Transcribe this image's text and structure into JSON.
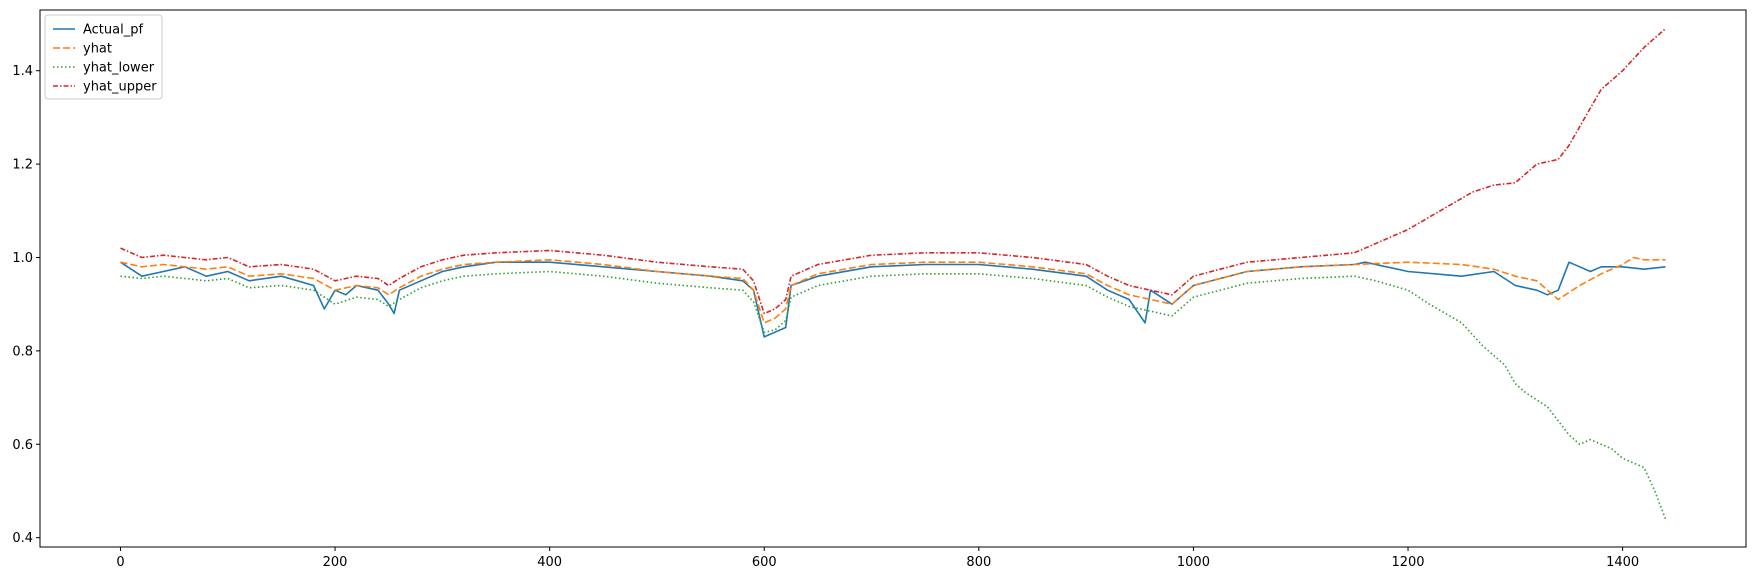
{
  "chart_data": {
    "type": "line",
    "title": "",
    "xlabel": "",
    "ylabel": "",
    "xlim": [
      -75,
      1515
    ],
    "ylim": [
      0.38,
      1.53
    ],
    "xticks": [
      0,
      200,
      400,
      600,
      800,
      1000,
      1200,
      1400
    ],
    "xtick_labels": [
      "0",
      "200",
      "400",
      "600",
      "800",
      "1000",
      "1200",
      "1400"
    ],
    "yticks": [
      0.4,
      0.6,
      0.8,
      1.0,
      1.2,
      1.4
    ],
    "ytick_labels": [
      "0.4",
      "0.6",
      "0.8",
      "1.0",
      "1.2",
      "1.4"
    ],
    "grid": false,
    "legend_position": "upper-left",
    "series": [
      {
        "name": "Actual_pf",
        "color": "#1f77b4",
        "dash": "solid",
        "x": [
          0,
          20,
          40,
          60,
          80,
          100,
          120,
          150,
          180,
          190,
          200,
          210,
          220,
          240,
          250,
          255,
          260,
          280,
          300,
          320,
          350,
          400,
          450,
          500,
          550,
          580,
          590,
          600,
          610,
          620,
          625,
          650,
          700,
          750,
          800,
          850,
          900,
          920,
          940,
          955,
          960,
          980,
          1000,
          1050,
          1100,
          1150,
          1160,
          1200,
          1250,
          1280,
          1300,
          1320,
          1330,
          1340,
          1350,
          1360,
          1370,
          1380,
          1400,
          1420,
          1440
        ],
        "y": [
          0.99,
          0.96,
          0.97,
          0.98,
          0.96,
          0.97,
          0.95,
          0.96,
          0.94,
          0.89,
          0.93,
          0.92,
          0.94,
          0.93,
          0.9,
          0.88,
          0.93,
          0.95,
          0.97,
          0.98,
          0.99,
          0.99,
          0.98,
          0.97,
          0.96,
          0.95,
          0.93,
          0.83,
          0.84,
          0.85,
          0.94,
          0.96,
          0.98,
          0.985,
          0.985,
          0.975,
          0.96,
          0.93,
          0.91,
          0.86,
          0.93,
          0.9,
          0.94,
          0.97,
          0.98,
          0.985,
          0.99,
          0.97,
          0.96,
          0.97,
          0.94,
          0.93,
          0.92,
          0.93,
          0.99,
          0.98,
          0.97,
          0.98,
          0.98,
          0.975,
          0.98
        ]
      },
      {
        "name": "yhat",
        "color": "#ff7f0e",
        "dash": "dashed",
        "x": [
          0,
          20,
          40,
          60,
          80,
          100,
          120,
          150,
          180,
          200,
          220,
          240,
          250,
          260,
          280,
          300,
          320,
          350,
          400,
          450,
          500,
          550,
          580,
          590,
          600,
          610,
          620,
          625,
          650,
          700,
          750,
          800,
          850,
          900,
          920,
          940,
          960,
          980,
          1000,
          1050,
          1100,
          1150,
          1200,
          1250,
          1280,
          1300,
          1320,
          1340,
          1360,
          1380,
          1400,
          1410,
          1420,
          1440
        ],
        "y": [
          0.99,
          0.98,
          0.985,
          0.98,
          0.975,
          0.98,
          0.96,
          0.965,
          0.955,
          0.93,
          0.94,
          0.935,
          0.92,
          0.935,
          0.96,
          0.975,
          0.985,
          0.99,
          0.995,
          0.985,
          0.97,
          0.96,
          0.955,
          0.93,
          0.86,
          0.87,
          0.89,
          0.94,
          0.965,
          0.985,
          0.99,
          0.99,
          0.98,
          0.965,
          0.94,
          0.92,
          0.91,
          0.9,
          0.94,
          0.97,
          0.98,
          0.985,
          0.99,
          0.985,
          0.975,
          0.96,
          0.95,
          0.91,
          0.94,
          0.965,
          0.985,
          1.0,
          0.995,
          0.995
        ]
      },
      {
        "name": "yhat_lower",
        "color": "#2ca02c",
        "dash": "dotted",
        "x": [
          0,
          20,
          40,
          60,
          80,
          100,
          120,
          150,
          180,
          200,
          220,
          240,
          250,
          260,
          280,
          300,
          320,
          350,
          400,
          450,
          500,
          550,
          580,
          590,
          600,
          610,
          620,
          625,
          650,
          700,
          750,
          800,
          850,
          900,
          920,
          940,
          960,
          980,
          1000,
          1050,
          1100,
          1150,
          1170,
          1200,
          1220,
          1250,
          1270,
          1290,
          1300,
          1310,
          1330,
          1350,
          1360,
          1370,
          1380,
          1390,
          1400,
          1410,
          1420,
          1430,
          1440
        ],
        "y": [
          0.96,
          0.955,
          0.96,
          0.955,
          0.95,
          0.955,
          0.935,
          0.94,
          0.93,
          0.9,
          0.915,
          0.91,
          0.895,
          0.91,
          0.935,
          0.95,
          0.96,
          0.965,
          0.97,
          0.96,
          0.945,
          0.935,
          0.93,
          0.905,
          0.84,
          0.845,
          0.865,
          0.915,
          0.94,
          0.96,
          0.965,
          0.965,
          0.955,
          0.94,
          0.915,
          0.895,
          0.885,
          0.875,
          0.915,
          0.945,
          0.955,
          0.96,
          0.95,
          0.93,
          0.9,
          0.86,
          0.81,
          0.77,
          0.73,
          0.71,
          0.68,
          0.62,
          0.6,
          0.61,
          0.6,
          0.59,
          0.57,
          0.56,
          0.55,
          0.5,
          0.44
        ]
      },
      {
        "name": "yhat_upper",
        "color": "#d62728",
        "dash": "dashdot",
        "x": [
          0,
          20,
          40,
          60,
          80,
          100,
          120,
          150,
          180,
          200,
          220,
          240,
          250,
          260,
          280,
          300,
          320,
          350,
          400,
          450,
          500,
          550,
          580,
          590,
          600,
          610,
          620,
          625,
          650,
          700,
          750,
          800,
          850,
          900,
          920,
          940,
          960,
          980,
          1000,
          1050,
          1100,
          1150,
          1170,
          1200,
          1230,
          1260,
          1280,
          1300,
          1320,
          1340,
          1350,
          1360,
          1370,
          1380,
          1400,
          1420,
          1440
        ],
        "y": [
          1.02,
          1.0,
          1.005,
          1.0,
          0.995,
          1.0,
          0.98,
          0.985,
          0.975,
          0.95,
          0.96,
          0.955,
          0.94,
          0.955,
          0.98,
          0.995,
          1.005,
          1.01,
          1.015,
          1.005,
          0.99,
          0.98,
          0.975,
          0.95,
          0.88,
          0.89,
          0.91,
          0.96,
          0.985,
          1.005,
          1.01,
          1.01,
          1.0,
          0.985,
          0.96,
          0.94,
          0.93,
          0.92,
          0.96,
          0.99,
          1.0,
          1.01,
          1.03,
          1.06,
          1.1,
          1.14,
          1.155,
          1.16,
          1.2,
          1.21,
          1.24,
          1.28,
          1.32,
          1.36,
          1.4,
          1.45,
          1.49
        ]
      }
    ]
  }
}
